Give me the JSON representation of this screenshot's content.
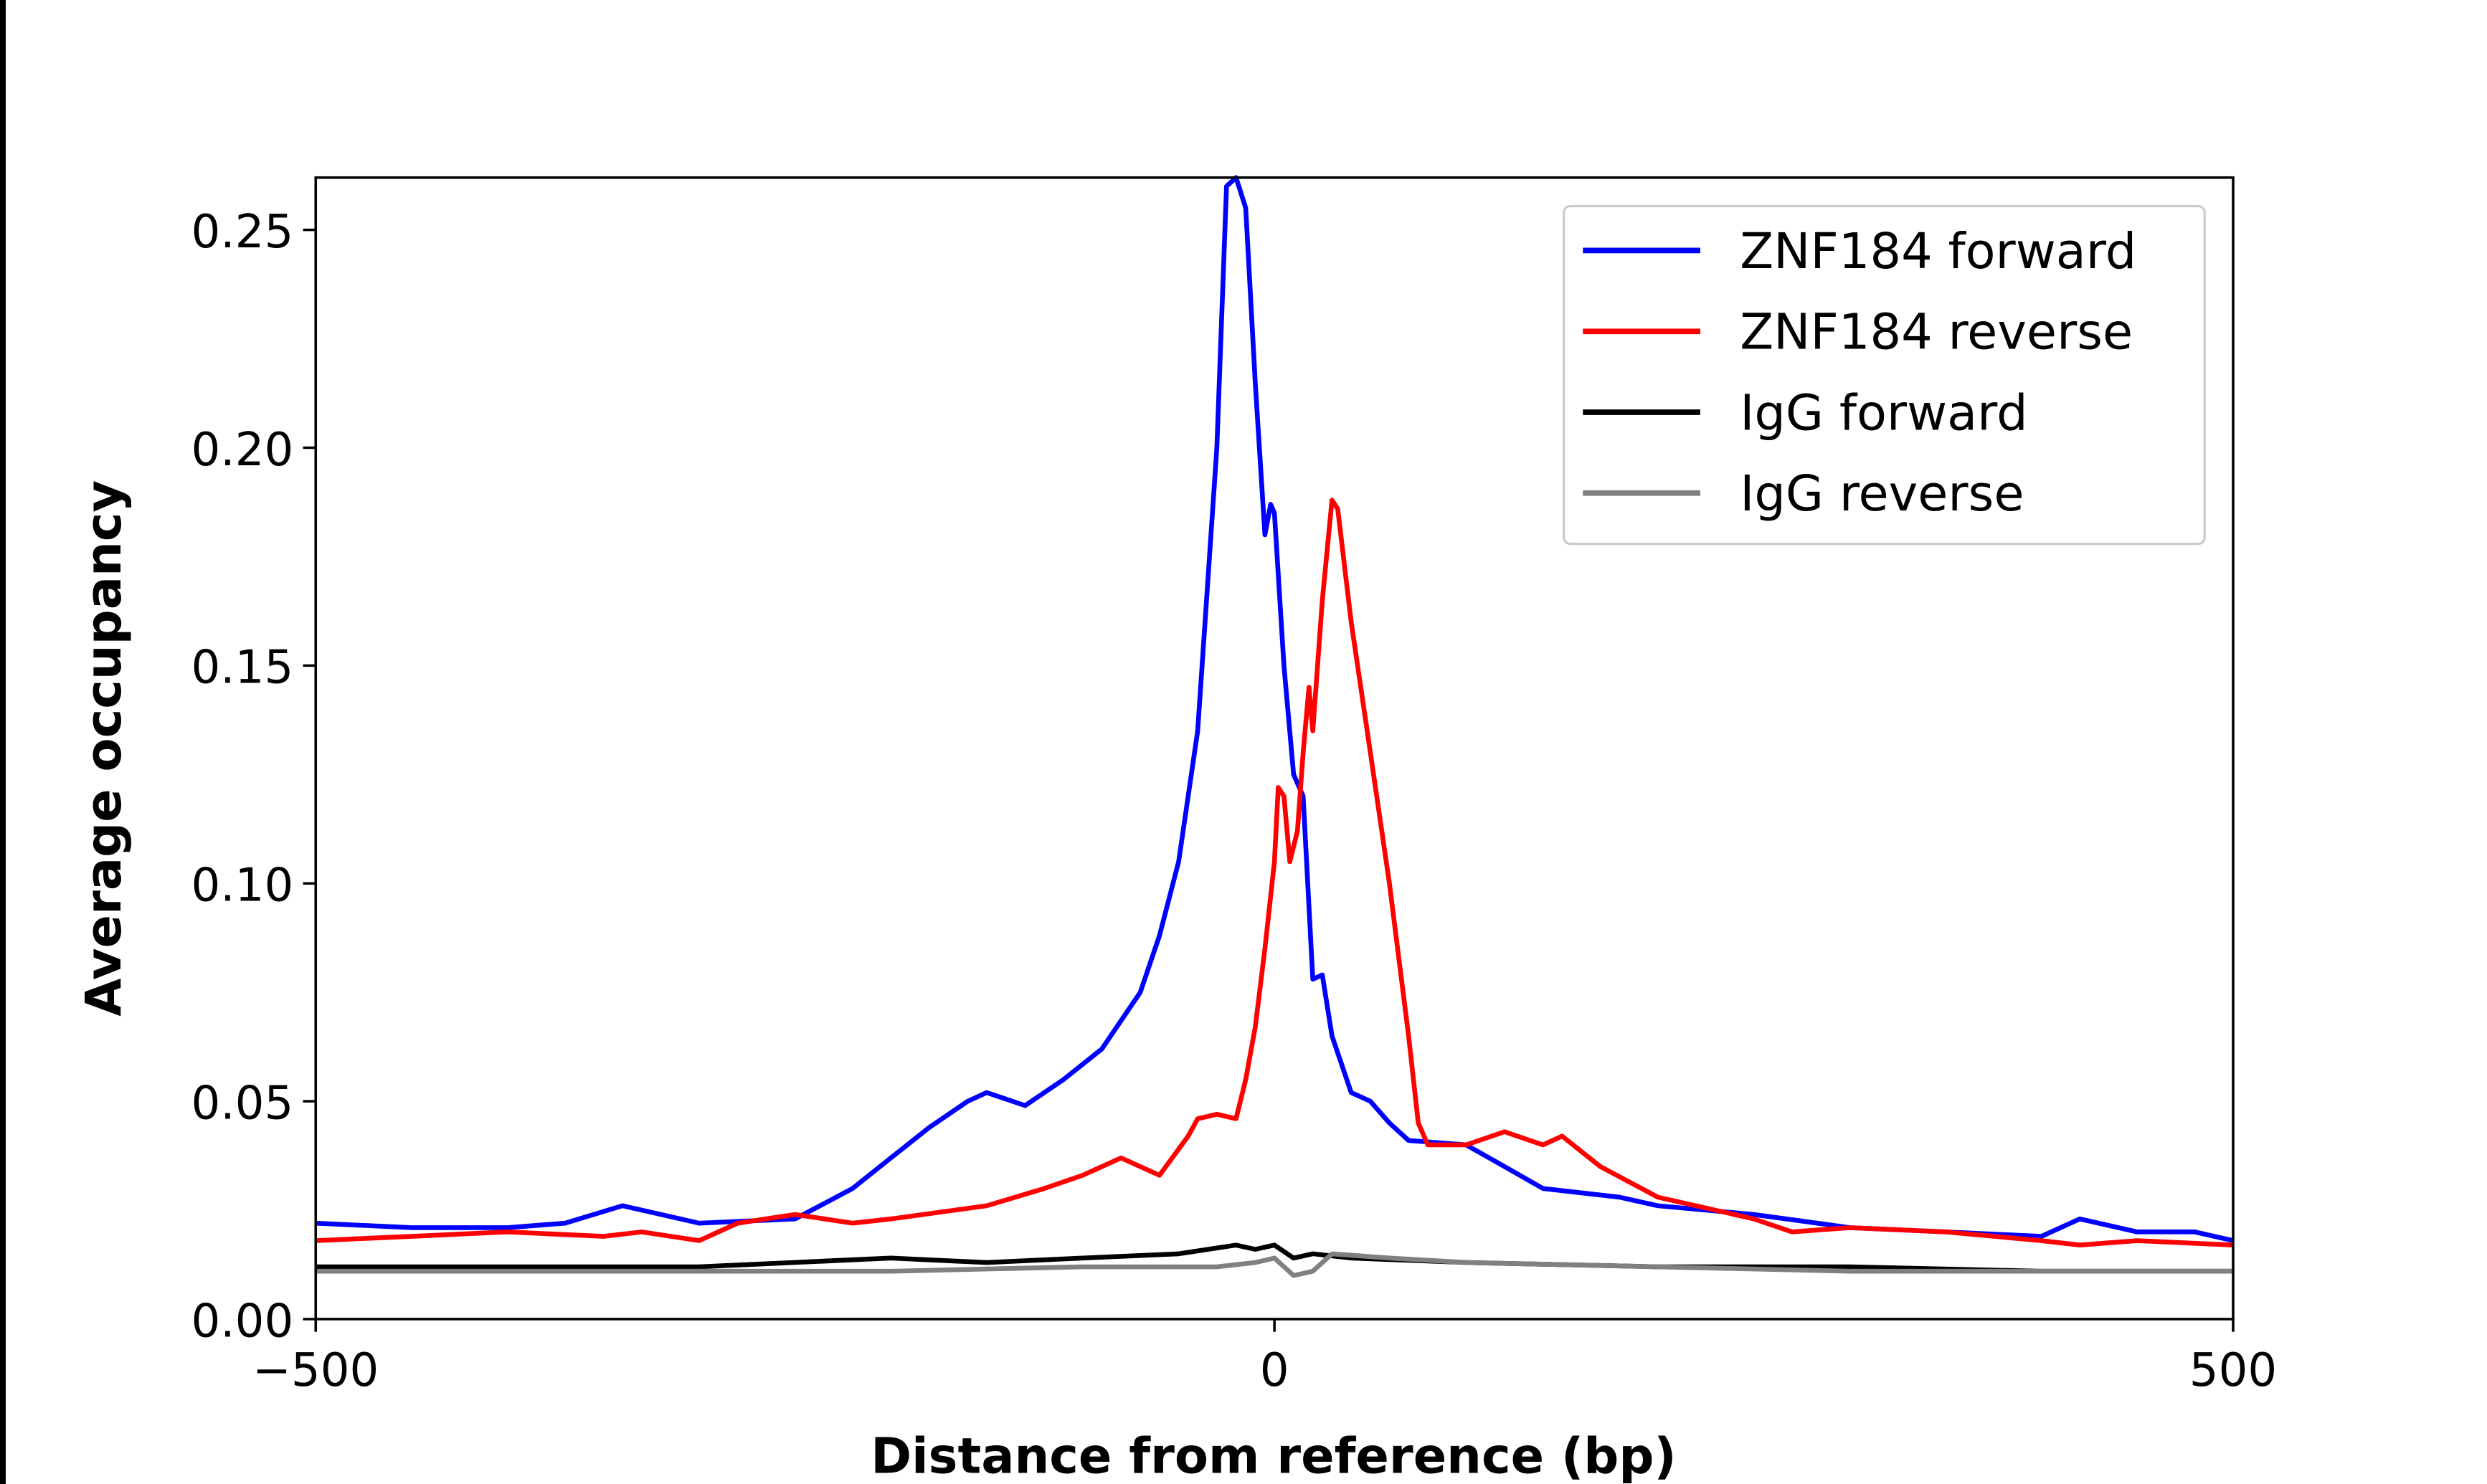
{
  "chart_data": {
    "type": "line",
    "title": "",
    "xlabel": "Distance from reference (bp)",
    "ylabel": "Average occupancy",
    "xlim": [
      -500,
      500
    ],
    "ylim": [
      0,
      0.262
    ],
    "xticks": [
      -500,
      0,
      500
    ],
    "xtick_labels": [
      "−500",
      "0",
      "500"
    ],
    "yticks": [
      0,
      0.05,
      0.1,
      0.15,
      0.2,
      0.25
    ],
    "ytick_labels": [
      "0.00",
      "0.05",
      "0.10",
      "0.15",
      "0.20",
      "0.25"
    ],
    "grid": false,
    "legend_position": "top-right",
    "series": [
      {
        "name": "ZNF184 forward",
        "color": "#0000ff",
        "x": [
          -500,
          -450,
          -400,
          -370,
          -340,
          -300,
          -250,
          -220,
          -200,
          -180,
          -160,
          -150,
          -130,
          -110,
          -90,
          -70,
          -60,
          -50,
          -40,
          -30,
          -25,
          -20,
          -15,
          -10,
          -5,
          -2,
          0,
          5,
          10,
          15,
          20,
          25,
          30,
          40,
          50,
          60,
          70,
          100,
          120,
          140,
          180,
          200,
          250,
          300,
          350,
          400,
          420,
          450,
          480,
          500
        ],
        "y": [
          0.022,
          0.021,
          0.021,
          0.022,
          0.026,
          0.022,
          0.023,
          0.03,
          0.037,
          0.044,
          0.05,
          0.052,
          0.049,
          0.055,
          0.062,
          0.075,
          0.088,
          0.105,
          0.135,
          0.2,
          0.26,
          0.262,
          0.255,
          0.215,
          0.18,
          0.187,
          0.185,
          0.15,
          0.125,
          0.12,
          0.078,
          0.079,
          0.065,
          0.052,
          0.05,
          0.045,
          0.041,
          0.04,
          0.035,
          0.03,
          0.028,
          0.026,
          0.024,
          0.021,
          0.02,
          0.019,
          0.023,
          0.02,
          0.02,
          0.018
        ]
      },
      {
        "name": "ZNF184 reverse",
        "color": "#ff0000",
        "x": [
          -500,
          -450,
          -400,
          -350,
          -330,
          -300,
          -280,
          -250,
          -220,
          -200,
          -150,
          -120,
          -100,
          -80,
          -60,
          -45,
          -40,
          -30,
          -20,
          -15,
          -10,
          -5,
          0,
          2,
          5,
          8,
          12,
          15,
          18,
          20,
          25,
          30,
          33,
          40,
          50,
          60,
          70,
          75,
          80,
          100,
          120,
          140,
          150,
          170,
          200,
          230,
          250,
          270,
          300,
          350,
          400,
          420,
          450,
          500
        ],
        "y": [
          0.018,
          0.019,
          0.02,
          0.019,
          0.02,
          0.018,
          0.022,
          0.024,
          0.022,
          0.023,
          0.026,
          0.03,
          0.033,
          0.037,
          0.033,
          0.042,
          0.046,
          0.047,
          0.046,
          0.055,
          0.067,
          0.085,
          0.105,
          0.122,
          0.12,
          0.105,
          0.112,
          0.13,
          0.145,
          0.135,
          0.165,
          0.188,
          0.186,
          0.16,
          0.13,
          0.1,
          0.065,
          0.045,
          0.04,
          0.04,
          0.043,
          0.04,
          0.042,
          0.035,
          0.028,
          0.025,
          0.023,
          0.02,
          0.021,
          0.02,
          0.018,
          0.017,
          0.018,
          0.017
        ]
      },
      {
        "name": "IgG forward",
        "color": "#000000",
        "x": [
          -500,
          -400,
          -300,
          -200,
          -150,
          -100,
          -50,
          -20,
          -10,
          0,
          10,
          20,
          40,
          100,
          200,
          300,
          400,
          500
        ],
        "y": [
          0.012,
          0.012,
          0.012,
          0.014,
          0.013,
          0.014,
          0.015,
          0.017,
          0.016,
          0.017,
          0.014,
          0.015,
          0.014,
          0.013,
          0.012,
          0.012,
          0.011,
          0.011
        ]
      },
      {
        "name": "IgG reverse",
        "color": "#808080",
        "x": [
          -500,
          -400,
          -300,
          -200,
          -100,
          -30,
          -10,
          0,
          10,
          20,
          30,
          60,
          100,
          200,
          300,
          400,
          500
        ],
        "y": [
          0.011,
          0.011,
          0.011,
          0.011,
          0.012,
          0.012,
          0.013,
          0.014,
          0.01,
          0.011,
          0.015,
          0.014,
          0.013,
          0.012,
          0.011,
          0.011,
          0.011
        ]
      }
    ]
  }
}
